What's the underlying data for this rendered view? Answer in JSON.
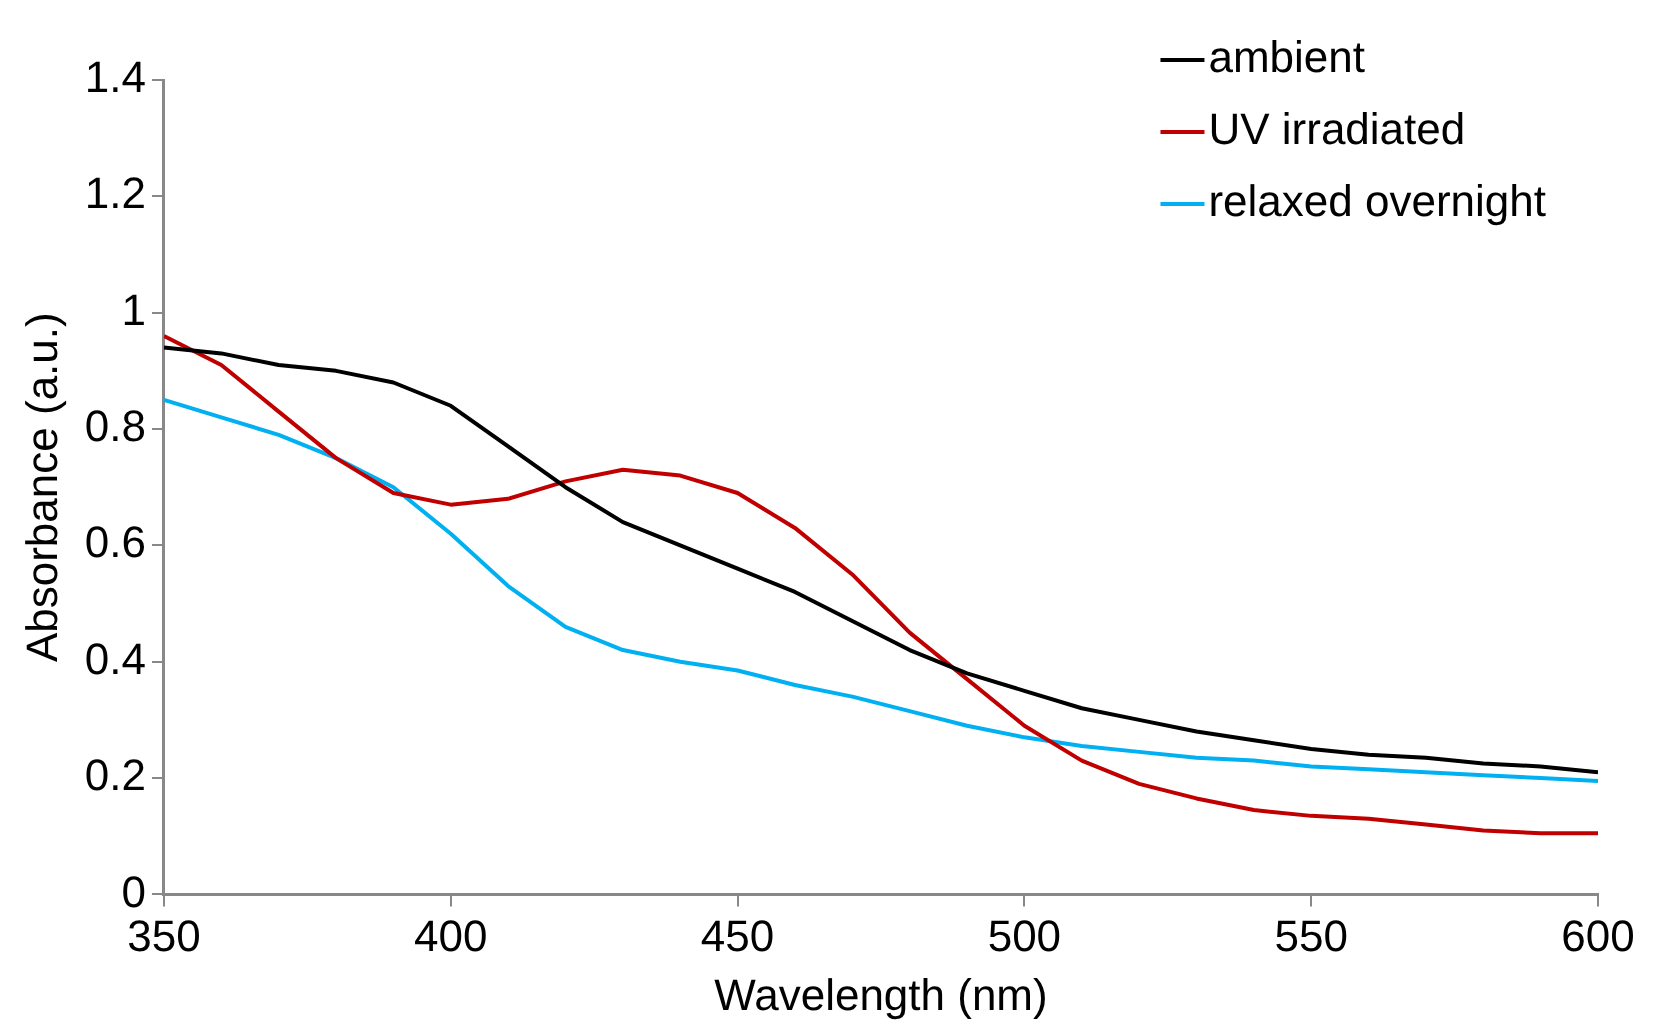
{
  "chart_data": {
    "type": "line",
    "xlabel": "Wavelength (nm)",
    "ylabel": "Absorbance (a.u.)",
    "x": [
      350,
      360,
      370,
      380,
      390,
      400,
      410,
      420,
      430,
      440,
      450,
      460,
      470,
      480,
      490,
      500,
      510,
      520,
      530,
      540,
      550,
      560,
      570,
      580,
      590,
      600
    ],
    "series": [
      {
        "name": "ambient",
        "color": "#000000",
        "values": [
          0.94,
          0.93,
          0.91,
          0.9,
          0.88,
          0.84,
          0.77,
          0.7,
          0.64,
          0.6,
          0.56,
          0.52,
          0.47,
          0.42,
          0.38,
          0.35,
          0.32,
          0.3,
          0.28,
          0.265,
          0.25,
          0.24,
          0.235,
          0.225,
          0.22,
          0.21
        ]
      },
      {
        "name": "UV irradiated",
        "color": "#c00000",
        "values": [
          0.96,
          0.91,
          0.83,
          0.75,
          0.69,
          0.67,
          0.68,
          0.71,
          0.73,
          0.72,
          0.69,
          0.63,
          0.55,
          0.45,
          0.37,
          0.29,
          0.23,
          0.19,
          0.165,
          0.145,
          0.135,
          0.13,
          0.12,
          0.11,
          0.105,
          0.105
        ]
      },
      {
        "name": "relaxed overnight",
        "color": "#00b0f0",
        "values": [
          0.85,
          0.82,
          0.79,
          0.75,
          0.7,
          0.62,
          0.53,
          0.46,
          0.42,
          0.4,
          0.385,
          0.36,
          0.34,
          0.315,
          0.29,
          0.27,
          0.255,
          0.245,
          0.235,
          0.23,
          0.22,
          0.215,
          0.21,
          0.205,
          0.2,
          0.195
        ]
      }
    ],
    "xlim": [
      350,
      600
    ],
    "xticks": [
      350,
      400,
      450,
      500,
      550,
      600
    ],
    "ylim": [
      0,
      1.4
    ],
    "yticks": [
      0,
      0.2,
      0.4,
      0.6,
      0.8,
      1,
      1.2,
      1.4
    ],
    "grid": false,
    "legend": "top right",
    "marker": "none",
    "line_style": "solid"
  }
}
